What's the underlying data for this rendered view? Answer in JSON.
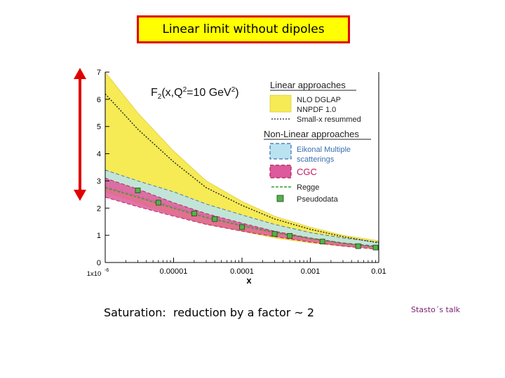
{
  "slide": {
    "title": "Linear limit without dipoles",
    "caption": "Saturation:  reduction by a factor ~ 2",
    "credit": "Stasto´s talk"
  },
  "chart_data": {
    "type": "line",
    "title": "F2(x,Q²=10 GeV²)",
    "xlabel": "x",
    "ylabel": "",
    "xscale": "log",
    "xlim": [
      1e-06,
      0.01
    ],
    "ylim": [
      0,
      7
    ],
    "x_tick_labels": [
      "1x10-6",
      "0.00001",
      "0.0001",
      "0.001",
      "0.01"
    ],
    "y_tick_labels": [
      "0",
      "1",
      "2",
      "3",
      "4",
      "5",
      "6",
      "7"
    ],
    "legend_placement": "top-right",
    "legend_sections": [
      {
        "heading": "Linear approaches",
        "entries": [
          "NLO DGLAP",
          "NNPDF 1.0",
          "Small-x resummed"
        ]
      },
      {
        "heading": "Non-Linear approaches",
        "entries": [
          "Eikonal Multiple scatterings",
          "CGC",
          "Regge",
          "Pseudodata"
        ]
      }
    ],
    "x": [
      1e-06,
      3e-06,
      1e-05,
      3e-05,
      0.0001,
      0.0003,
      0.001,
      0.003,
      0.01
    ],
    "bands": [
      {
        "name": "NLO DGLAP",
        "color": "#f6ea55",
        "upper": [
          7.0,
          5.5,
          4.1,
          3.0,
          2.25,
          1.7,
          1.3,
          1.0,
          0.8
        ],
        "lower": [
          2.6,
          2.2,
          1.75,
          1.4,
          1.15,
          0.9,
          0.72,
          0.6,
          0.5
        ]
      },
      {
        "name": "Eikonal Multiple scatterings",
        "color": "#b9e3f0",
        "upper": [
          3.4,
          3.0,
          2.6,
          2.15,
          1.75,
          1.4,
          1.1,
          0.9,
          0.75
        ],
        "lower": [
          2.8,
          2.45,
          2.05,
          1.7,
          1.4,
          1.12,
          0.9,
          0.72,
          0.6
        ]
      },
      {
        "name": "CGC",
        "color": "#dd5a9c",
        "upper": [
          3.1,
          2.7,
          2.2,
          1.8,
          1.45,
          1.15,
          0.9,
          0.72,
          0.58
        ],
        "lower": [
          2.4,
          2.05,
          1.7,
          1.4,
          1.15,
          0.95,
          0.75,
          0.6,
          0.48
        ]
      }
    ],
    "series": [
      {
        "name": "Small-x resummed",
        "values": [
          6.2,
          4.9,
          3.7,
          2.75,
          2.1,
          1.6,
          1.22,
          0.95,
          0.72
        ]
      },
      {
        "name": "Regge",
        "values": [
          2.75,
          2.4,
          2.0,
          1.65,
          1.35,
          1.1,
          0.88,
          0.7,
          0.56
        ]
      }
    ],
    "pseudodata": {
      "x": [
        3e-06,
        6e-06,
        2e-05,
        4e-05,
        0.0001,
        0.0003,
        0.0005,
        0.0015,
        0.005,
        0.009
      ],
      "y": [
        2.65,
        2.2,
        1.8,
        1.6,
        1.3,
        1.05,
        0.98,
        0.77,
        0.6,
        0.55
      ]
    },
    "colors": {
      "nlo": "#f6ea55",
      "eikonal": "#b9e3f0",
      "cgc": "#dd5a9c",
      "regge": "#2f9e2f",
      "pseudodata": "#55b04a",
      "arrow": "#e00000"
    }
  }
}
